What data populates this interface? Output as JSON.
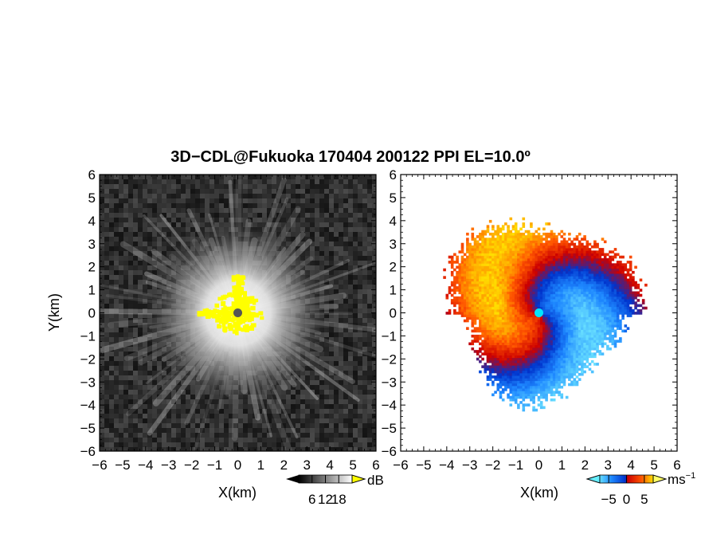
{
  "figure": {
    "title": "3D−CDL@Fukuoka 170404 200122 PPI EL=10.0º"
  },
  "chart_data": [
    {
      "type": "heatmap",
      "panel": "left",
      "description_of_field": "grayscale intensity, bright center fading outward with radial streaks, yellow saturated core",
      "xlabel": "X(km)",
      "ylabel": "Y(km)",
      "xlim": [
        -6,
        6
      ],
      "ylim": [
        -6,
        6
      ],
      "xticks": [
        -6,
        -5,
        -4,
        -3,
        -2,
        -1,
        0,
        1,
        2,
        3,
        4,
        5,
        6
      ],
      "yticks": [
        -6,
        -5,
        -4,
        -3,
        -2,
        -1,
        0,
        1,
        2,
        3,
        4,
        5,
        6
      ],
      "xtick_labels": [
        "−6",
        "−5",
        "−4",
        "−3",
        "−2",
        "−1",
        "0",
        "1",
        "2",
        "3",
        "4",
        "5",
        "6"
      ],
      "ytick_labels": [
        "−6",
        "−5",
        "−4",
        "−3",
        "−2",
        "−1",
        "0",
        "1",
        "2",
        "3",
        "4",
        "5",
        "6"
      ],
      "colorbar": {
        "label": "dB",
        "ticks": [
          "6",
          "12",
          "18"
        ],
        "tick_values": [
          6,
          12,
          18
        ],
        "range": [
          0,
          24
        ],
        "colors": [
          "#000000",
          "#ffffff"
        ],
        "over_color": "#ffff00",
        "under_color": "#000000"
      },
      "radar_center": [
        0,
        0
      ],
      "center_marker_color": "#555555",
      "core_color": "#ffff00"
    },
    {
      "type": "heatmap",
      "panel": "right",
      "description_of_field": "Doppler velocity, warm (red/orange/yellow) on west and north, cool (blue/cyan) on east and south",
      "xlabel": "X(km)",
      "xlim": [
        -6,
        6
      ],
      "ylim": [
        -6,
        6
      ],
      "xticks": [
        -6,
        -5,
        -4,
        -3,
        -2,
        -1,
        0,
        1,
        2,
        3,
        4,
        5,
        6
      ],
      "yticks": [
        -6,
        -5,
        -4,
        -3,
        -2,
        -1,
        0,
        1,
        2,
        3,
        4,
        5,
        6
      ],
      "xtick_labels": [
        "−6",
        "−5",
        "−4",
        "−3",
        "−2",
        "−1",
        "0",
        "1",
        "2",
        "3",
        "4",
        "5",
        "6"
      ],
      "ytick_labels": [
        "−6",
        "−5",
        "−4",
        "−3",
        "−2",
        "−1",
        "0",
        "1",
        "2",
        "3",
        "4",
        "5",
        "6"
      ],
      "colorbar": {
        "label": "ms",
        "label_superscript": "−1",
        "ticks": [
          "−5",
          "0",
          "5"
        ],
        "tick_values": [
          -5,
          0,
          5
        ],
        "range": [
          -7.5,
          7.5
        ],
        "colors": [
          "#66ddff",
          "#1e88ff",
          "#0033cc",
          "#cc0000",
          "#ff5500",
          "#ffdd00"
        ],
        "over_color": "#ffff66",
        "under_color": "#66eeff"
      },
      "data_extent_km": 4.6,
      "center_marker_color": "#00e5ff"
    }
  ]
}
